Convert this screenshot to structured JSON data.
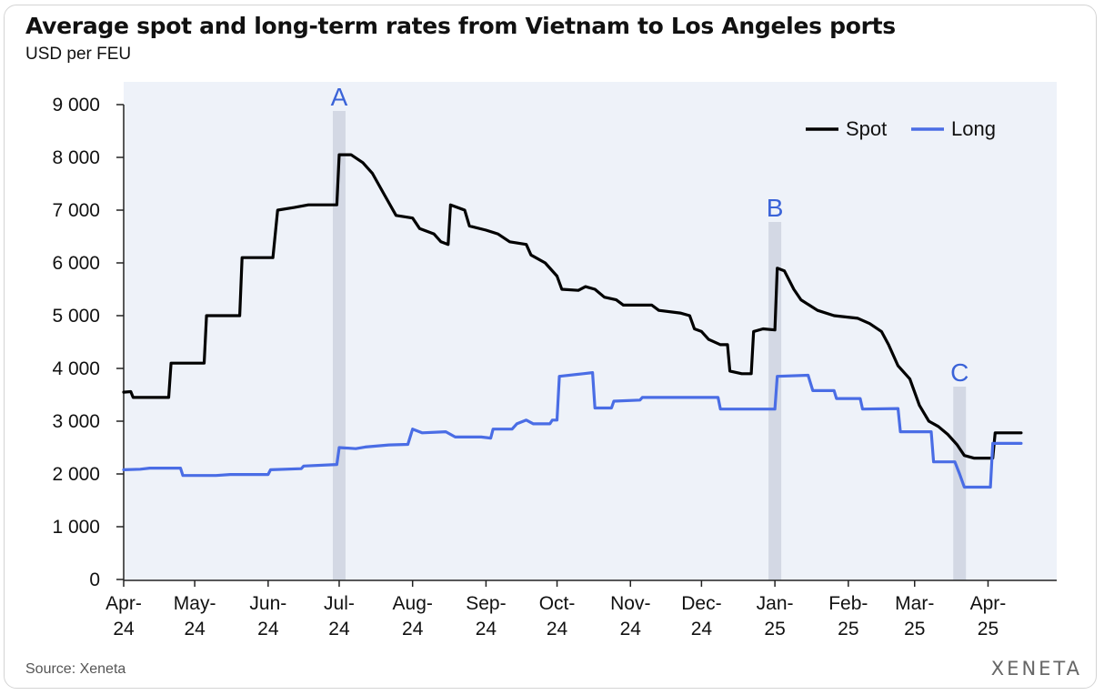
{
  "title": "Average spot and long-term rates from Vietnam to Los Angeles ports",
  "subtitle": "USD per FEU",
  "source": "Source: Xeneta",
  "logo_text": "XENETA",
  "colors": {
    "spot": "#000000",
    "long": "#4a6de5",
    "band": "#d3d8e4",
    "plot_bg": "#eef2f9",
    "annotation": "#3a63d8"
  },
  "chart_data": {
    "type": "line",
    "title": "Average spot and long-term rates from Vietnam to Los Angeles ports",
    "ylabel": "USD per FEU",
    "xlabel": "",
    "ylim": [
      0,
      9000
    ],
    "xlim": [
      "2024-04-01",
      "2025-04-30"
    ],
    "yticks": [
      0,
      1000,
      2000,
      3000,
      4000,
      5000,
      6000,
      7000,
      8000,
      9000
    ],
    "ytick_labels": [
      "0",
      "1 000",
      "2 000",
      "3 000",
      "4 000",
      "5 000",
      "6 000",
      "7 000",
      "8 000",
      "9 000"
    ],
    "xticks": [
      {
        "date": "2024-04-01",
        "line1": "Apr-",
        "line2": "24"
      },
      {
        "date": "2024-05-01",
        "line1": "May-",
        "line2": "24"
      },
      {
        "date": "2024-06-01",
        "line1": "Jun-",
        "line2": "24"
      },
      {
        "date": "2024-07-01",
        "line1": "Jul-",
        "line2": "24"
      },
      {
        "date": "2024-08-01",
        "line1": "Aug-",
        "line2": "24"
      },
      {
        "date": "2024-09-01",
        "line1": "Sep-",
        "line2": "24"
      },
      {
        "date": "2024-10-01",
        "line1": "Oct-",
        "line2": "24"
      },
      {
        "date": "2024-11-01",
        "line1": "Nov-",
        "line2": "24"
      },
      {
        "date": "2024-12-01",
        "line1": "Dec-",
        "line2": "24"
      },
      {
        "date": "2025-01-01",
        "line1": "Jan-",
        "line2": "25"
      },
      {
        "date": "2025-02-01",
        "line1": "Feb-",
        "line2": "25"
      },
      {
        "date": "2025-03-01",
        "line1": "Mar-",
        "line2": "25"
      },
      {
        "date": "2025-04-01",
        "line1": "Apr-",
        "line2": "25"
      }
    ],
    "grid": false,
    "legend": "top-right",
    "annotations": [
      {
        "label": "A",
        "date": "2024-07-01"
      },
      {
        "label": "B",
        "date": "2025-01-01"
      },
      {
        "label": "C",
        "date": "2025-03-20"
      }
    ],
    "series": [
      {
        "name": "Spot",
        "points": [
          [
            "2024-04-01",
            3550
          ],
          [
            "2024-04-04",
            3560
          ],
          [
            "2024-04-05",
            3450
          ],
          [
            "2024-04-20",
            3450
          ],
          [
            "2024-04-21",
            4100
          ],
          [
            "2024-05-01",
            4100
          ],
          [
            "2024-05-05",
            4100
          ],
          [
            "2024-05-06",
            5000
          ],
          [
            "2024-05-20",
            5000
          ],
          [
            "2024-05-21",
            6100
          ],
          [
            "2024-06-03",
            6100
          ],
          [
            "2024-06-05",
            7000
          ],
          [
            "2024-06-12",
            7050
          ],
          [
            "2024-06-18",
            7100
          ],
          [
            "2024-06-30",
            7100
          ],
          [
            "2024-07-01",
            8050
          ],
          [
            "2024-07-06",
            8050
          ],
          [
            "2024-07-11",
            7900
          ],
          [
            "2024-07-15",
            7700
          ],
          [
            "2024-07-20",
            7300
          ],
          [
            "2024-07-25",
            6900
          ],
          [
            "2024-08-01",
            6850
          ],
          [
            "2024-08-04",
            6650
          ],
          [
            "2024-08-10",
            6550
          ],
          [
            "2024-08-13",
            6400
          ],
          [
            "2024-08-16",
            6350
          ],
          [
            "2024-08-17",
            7100
          ],
          [
            "2024-08-23",
            7000
          ],
          [
            "2024-08-25",
            6700
          ],
          [
            "2024-09-01",
            6620
          ],
          [
            "2024-09-06",
            6550
          ],
          [
            "2024-09-11",
            6400
          ],
          [
            "2024-09-18",
            6350
          ],
          [
            "2024-09-20",
            6150
          ],
          [
            "2024-09-26",
            6000
          ],
          [
            "2024-10-01",
            5750
          ],
          [
            "2024-10-03",
            5500
          ],
          [
            "2024-10-10",
            5480
          ],
          [
            "2024-10-13",
            5550
          ],
          [
            "2024-10-17",
            5500
          ],
          [
            "2024-10-21",
            5350
          ],
          [
            "2024-10-26",
            5300
          ],
          [
            "2024-10-29",
            5200
          ],
          [
            "2024-11-10",
            5200
          ],
          [
            "2024-11-13",
            5100
          ],
          [
            "2024-11-22",
            5050
          ],
          [
            "2024-11-26",
            5000
          ],
          [
            "2024-11-28",
            4750
          ],
          [
            "2024-12-01",
            4700
          ],
          [
            "2024-12-04",
            4550
          ],
          [
            "2024-12-09",
            4450
          ],
          [
            "2024-12-12",
            4450
          ],
          [
            "2024-12-13",
            3950
          ],
          [
            "2024-12-18",
            3900
          ],
          [
            "2024-12-22",
            3900
          ],
          [
            "2024-12-23",
            4700
          ],
          [
            "2024-12-27",
            4750
          ],
          [
            "2025-01-01",
            4730
          ],
          [
            "2025-01-02",
            5900
          ],
          [
            "2025-01-05",
            5850
          ],
          [
            "2025-01-09",
            5500
          ],
          [
            "2025-01-12",
            5300
          ],
          [
            "2025-01-19",
            5100
          ],
          [
            "2025-01-26",
            5000
          ],
          [
            "2025-02-05",
            4950
          ],
          [
            "2025-02-10",
            4850
          ],
          [
            "2025-02-15",
            4700
          ],
          [
            "2025-02-18",
            4450
          ],
          [
            "2025-02-22",
            4050
          ],
          [
            "2025-02-27",
            3800
          ],
          [
            "2025-03-03",
            3300
          ],
          [
            "2025-03-07",
            3000
          ],
          [
            "2025-03-11",
            2900
          ],
          [
            "2025-03-15",
            2750
          ],
          [
            "2025-03-19",
            2550
          ],
          [
            "2025-03-22",
            2350
          ],
          [
            "2025-03-26",
            2300
          ],
          [
            "2025-04-03",
            2300
          ],
          [
            "2025-04-04",
            2780
          ],
          [
            "2025-04-15",
            2780
          ]
        ]
      },
      {
        "name": "Long",
        "points": [
          [
            "2024-04-01",
            2080
          ],
          [
            "2024-04-08",
            2090
          ],
          [
            "2024-04-12",
            2110
          ],
          [
            "2024-04-25",
            2110
          ],
          [
            "2024-04-26",
            1970
          ],
          [
            "2024-05-10",
            1970
          ],
          [
            "2024-05-16",
            1990
          ],
          [
            "2024-06-01",
            1990
          ],
          [
            "2024-06-02",
            2080
          ],
          [
            "2024-06-15",
            2100
          ],
          [
            "2024-06-16",
            2150
          ],
          [
            "2024-06-30",
            2180
          ],
          [
            "2024-07-01",
            2500
          ],
          [
            "2024-07-08",
            2480
          ],
          [
            "2024-07-12",
            2510
          ],
          [
            "2024-07-22",
            2550
          ],
          [
            "2024-07-30",
            2560
          ],
          [
            "2024-08-01",
            2850
          ],
          [
            "2024-08-05",
            2780
          ],
          [
            "2024-08-15",
            2800
          ],
          [
            "2024-08-19",
            2700
          ],
          [
            "2024-08-30",
            2700
          ],
          [
            "2024-09-03",
            2680
          ],
          [
            "2024-09-04",
            2850
          ],
          [
            "2024-09-12",
            2850
          ],
          [
            "2024-09-14",
            2950
          ],
          [
            "2024-09-18",
            3020
          ],
          [
            "2024-09-21",
            2950
          ],
          [
            "2024-09-28",
            2950
          ],
          [
            "2024-09-29",
            3020
          ],
          [
            "2024-10-01",
            3020
          ],
          [
            "2024-10-02",
            3850
          ],
          [
            "2024-10-12",
            3900
          ],
          [
            "2024-10-16",
            3920
          ],
          [
            "2024-10-17",
            3250
          ],
          [
            "2024-10-24",
            3250
          ],
          [
            "2024-10-25",
            3380
          ],
          [
            "2024-11-05",
            3400
          ],
          [
            "2024-11-06",
            3450
          ],
          [
            "2024-12-08",
            3450
          ],
          [
            "2024-12-09",
            3230
          ],
          [
            "2025-01-01",
            3230
          ],
          [
            "2025-01-02",
            3850
          ],
          [
            "2025-01-15",
            3870
          ],
          [
            "2025-01-17",
            3580
          ],
          [
            "2025-01-26",
            3580
          ],
          [
            "2025-01-27",
            3430
          ],
          [
            "2025-02-06",
            3430
          ],
          [
            "2025-02-07",
            3230
          ],
          [
            "2025-02-22",
            3240
          ],
          [
            "2025-02-23",
            2800
          ],
          [
            "2025-03-08",
            2800
          ],
          [
            "2025-03-09",
            2230
          ],
          [
            "2025-03-18",
            2230
          ],
          [
            "2025-03-20",
            2000
          ],
          [
            "2025-03-22",
            1750
          ],
          [
            "2025-04-02",
            1750
          ],
          [
            "2025-04-03",
            2580
          ],
          [
            "2025-04-15",
            2580
          ]
        ]
      }
    ]
  }
}
